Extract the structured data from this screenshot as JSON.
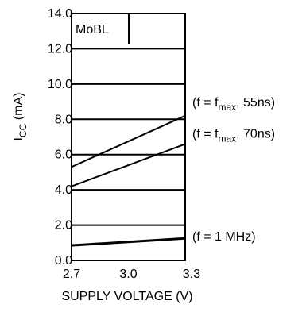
{
  "chart_data": {
    "type": "line",
    "panel_label": "MoBL",
    "title": "",
    "xlabel": "SUPPLY VOLTAGE (V)",
    "ylabel": {
      "base": "I",
      "sub": "CC",
      "rest": " (mA)"
    },
    "x_ticks": [
      "2.7",
      "3.0",
      "3.3"
    ],
    "x_tick_values": [
      2.7,
      3.0,
      3.3
    ],
    "y_ticks": [
      "0.0",
      "2.0",
      "4.0",
      "6.0",
      "8.0",
      "10.0",
      "12.0",
      "14.0"
    ],
    "y_tick_values": [
      0,
      2,
      4,
      6,
      8,
      10,
      12,
      14
    ],
    "xlim": [
      2.7,
      3.3
    ],
    "ylim": [
      0,
      14
    ],
    "grid": "horizontal",
    "series": [
      {
        "name": {
          "pre": "(f = f",
          "sub": "max",
          "post": ", 55ns)"
        },
        "x": [
          2.7,
          3.3
        ],
        "values": [
          5.3,
          8.2
        ],
        "stroke": 2
      },
      {
        "name": {
          "pre": "(f = f",
          "sub": "max",
          "post": ", 70ns)"
        },
        "x": [
          2.7,
          3.3
        ],
        "values": [
          4.2,
          6.6
        ],
        "stroke": 2
      },
      {
        "name": {
          "pre": "(f = 1 MHz)",
          "sub": "",
          "post": ""
        },
        "x": [
          2.7,
          3.3
        ],
        "values": [
          0.85,
          1.25
        ],
        "stroke": 3
      }
    ]
  }
}
